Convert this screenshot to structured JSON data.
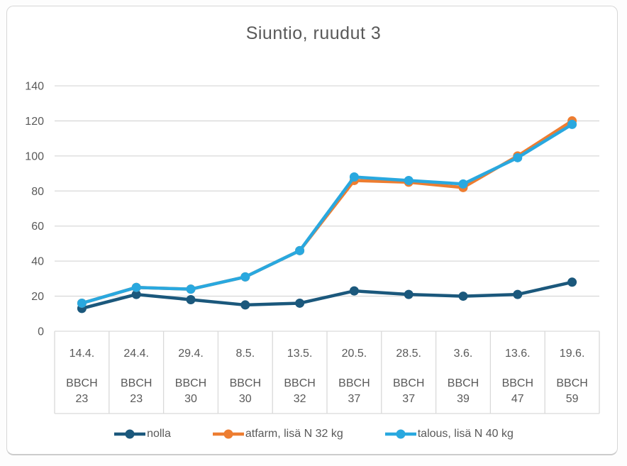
{
  "chart_data": {
    "type": "line",
    "title": "Siuntio, ruudut 3",
    "xlabel": "",
    "ylabel": "",
    "ylim": [
      0,
      140
    ],
    "yticks": [
      0,
      20,
      40,
      60,
      80,
      100,
      120,
      140
    ],
    "grid": true,
    "legend_position": "bottom",
    "categories": [
      {
        "date": "14.4.",
        "bbch_label": "BBCH",
        "bbch": "23"
      },
      {
        "date": "24.4.",
        "bbch_label": "BBCH",
        "bbch": "23"
      },
      {
        "date": "29.4.",
        "bbch_label": "BBCH",
        "bbch": "30"
      },
      {
        "date": "8.5.",
        "bbch_label": "BBCH",
        "bbch": "30"
      },
      {
        "date": "13.5.",
        "bbch_label": "BBCH",
        "bbch": "32"
      },
      {
        "date": "20.5.",
        "bbch_label": "BBCH",
        "bbch": "37"
      },
      {
        "date": "28.5.",
        "bbch_label": "BBCH",
        "bbch": "37"
      },
      {
        "date": "3.6.",
        "bbch_label": "BBCH",
        "bbch": "39"
      },
      {
        "date": "13.6.",
        "bbch_label": "BBCH",
        "bbch": "47"
      },
      {
        "date": "19.6.",
        "bbch_label": "BBCH",
        "bbch": "59"
      }
    ],
    "series": [
      {
        "name": "nolla",
        "color": "#1B587C",
        "values": [
          13,
          21,
          18,
          15,
          16,
          23,
          21,
          20,
          21,
          28
        ]
      },
      {
        "name": "atfarm, lisä N 32 kg",
        "color": "#ED7D31",
        "values": [
          16,
          25,
          24,
          31,
          46,
          86,
          85,
          82,
          100,
          120
        ]
      },
      {
        "name": "talous, lisä N 40 kg",
        "color": "#29A8DF",
        "values": [
          16,
          25,
          24,
          31,
          46,
          88,
          86,
          84,
          99,
          118
        ]
      }
    ],
    "colors": {
      "text": "#595959",
      "gridline": "#d9d9d9",
      "card_border": "#d6d6d6"
    }
  }
}
